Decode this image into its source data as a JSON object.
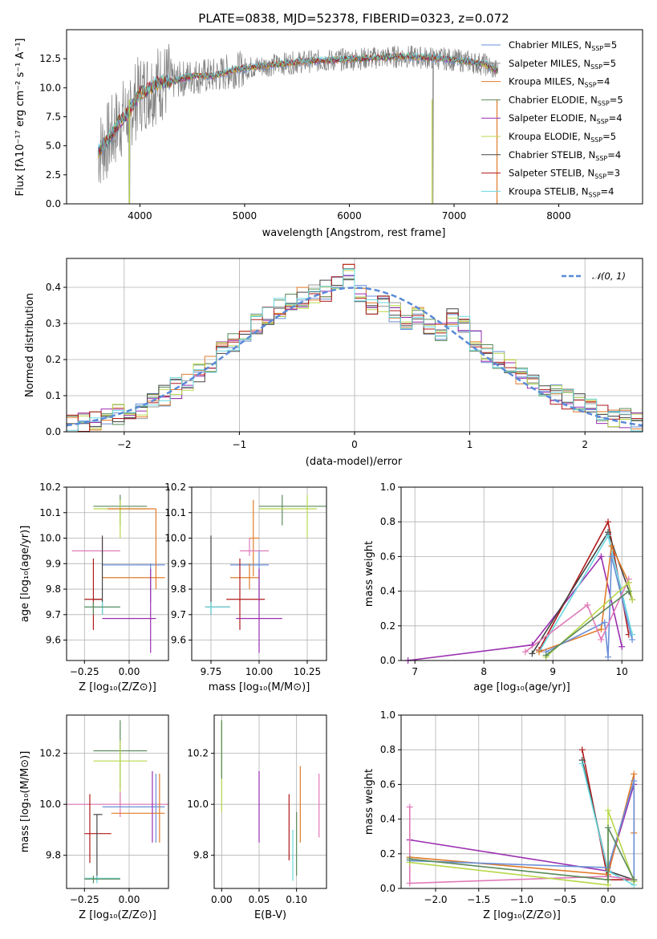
{
  "colors": {
    "Chabrier MILES": "#6a8fd8",
    "Salpeter MILES": "#9a9a9a",
    "Kroupa MILES": "#e07b2a",
    "Chabrier ELODIE": "#5a8a5a",
    "Salpeter ELODIE": "#9a2fb0",
    "Kroupa ELODIE": "#b8d84a",
    "Chabrier STELIB": "#444444",
    "Salpeter STELIB": "#b01a1a",
    "Kroupa STELIB": "#6ad8e0",
    "pink": "#e07ab8",
    "normal": "#5a8ad8"
  },
  "chart_data": [
    {
      "id": "spectrum",
      "type": "line",
      "title": "PLATE=0838, MJD=52378, FIBERID=0323, z=0.072",
      "xlabel": "wavelength [Angstrom, rest frame]",
      "ylabel": "Flux [fλ10⁻¹⁷ erg cm⁻² s⁻¹ A⁻¹]",
      "xlim": [
        3300,
        8800
      ],
      "ylim": [
        0,
        15
      ],
      "xticks": [
        "4000",
        "5000",
        "6000",
        "7000",
        "8000"
      ],
      "yticks": [
        "0.0",
        "2.5",
        "5.0",
        "7.5",
        "10.0",
        "12.5"
      ],
      "xtick_values": [
        4000,
        5000,
        6000,
        7000,
        8000
      ],
      "ytick_values": [
        0,
        2.5,
        5,
        7.5,
        10,
        12.5
      ],
      "legend_position": "right",
      "legend": [
        {
          "name": "Chabrier MILES",
          "nssp": "5"
        },
        {
          "name": "Salpeter MILES",
          "nssp": "5"
        },
        {
          "name": "Kroupa MILES",
          "nssp": "4"
        },
        {
          "name": "Chabrier ELODIE",
          "nssp": "5"
        },
        {
          "name": "Salpeter ELODIE",
          "nssp": "4"
        },
        {
          "name": "Kroupa ELODIE",
          "nssp": "5"
        },
        {
          "name": "Chabrier STELIB",
          "nssp": "4"
        },
        {
          "name": "Salpeter STELIB",
          "nssp": "3"
        },
        {
          "name": "Kroupa STELIB",
          "nssp": "4"
        }
      ],
      "data_x": [
        3600,
        3700,
        3800,
        3900,
        4000,
        4100,
        4200,
        4300,
        4500,
        4700,
        4900,
        5100,
        5300,
        5500,
        5700,
        5900,
        6100,
        6300,
        6500,
        6700,
        6900,
        7100,
        7300,
        7400
      ],
      "data_y": [
        4.5,
        5.5,
        7.0,
        8.0,
        9.5,
        10.0,
        10.5,
        10.5,
        11.0,
        11.0,
        11.5,
        11.8,
        12.0,
        12.2,
        12.3,
        12.4,
        12.5,
        12.6,
        12.7,
        12.6,
        12.5,
        12.3,
        12.0,
        11.5
      ]
    },
    {
      "id": "residuals",
      "type": "line",
      "xlabel": "(data-model)/error",
      "ylabel": "Normed distribution",
      "xlim": [
        -2.5,
        2.5
      ],
      "ylim": [
        0,
        0.48
      ],
      "xticks": [
        "−2",
        "−1",
        "0",
        "1",
        "2"
      ],
      "yticks": [
        "0.0",
        "0.1",
        "0.2",
        "0.3",
        "0.4"
      ],
      "xtick_values": [
        -2,
        -1,
        0,
        1,
        2
      ],
      "ytick_values": [
        0,
        0.1,
        0.2,
        0.3,
        0.4
      ],
      "legend_position": "top-right",
      "legend_label": "𝒩(0, 1)",
      "hist_values": [
        0.02,
        0.025,
        0.03,
        0.04,
        0.05,
        0.06,
        0.065,
        0.08,
        0.1,
        0.12,
        0.14,
        0.16,
        0.19,
        0.22,
        0.25,
        0.27,
        0.3,
        0.32,
        0.34,
        0.36,
        0.37,
        0.38,
        0.39,
        0.41,
        0.44,
        0.38,
        0.35,
        0.36,
        0.33,
        0.3,
        0.32,
        0.3,
        0.28,
        0.32,
        0.3,
        0.25,
        0.22,
        0.2,
        0.18,
        0.16,
        0.14,
        0.12,
        0.1,
        0.09,
        0.08,
        0.07,
        0.05,
        0.04,
        0.035,
        0.03
      ]
    },
    {
      "id": "z-age",
      "type": "scatter",
      "xlabel": "Z [log₁₀(Z/Z⊙)]",
      "ylabel": "age  [log₁₀(age/yr)]",
      "xlim": [
        -0.35,
        0.22
      ],
      "ylim": [
        9.52,
        10.2
      ],
      "xticks": [
        "−0.25",
        "0.00"
      ],
      "yticks": [
        "9.6",
        "9.7",
        "9.8",
        "9.9",
        "10.0",
        "10.1",
        "10.2"
      ],
      "xtick_values": [
        -0.25,
        0
      ],
      "ytick_values": [
        9.6,
        9.7,
        9.8,
        9.9,
        10.0,
        10.1,
        10.2
      ]
    },
    {
      "id": "mass-age",
      "type": "scatter",
      "xlabel": "mass [log₁₀(M/M⊙)]",
      "xlim": [
        9.65,
        10.35
      ],
      "ylim": [
        9.52,
        10.2
      ],
      "xticks": [
        "9.75",
        "10.00",
        "10.25"
      ],
      "yticks": [
        "9.6",
        "9.7",
        "9.8",
        "9.9",
        "10.0",
        "10.1",
        "10.2"
      ],
      "xtick_values": [
        9.75,
        10.0,
        10.25
      ],
      "ytick_values": [
        9.6,
        9.7,
        9.8,
        9.9,
        10.0,
        10.1,
        10.2
      ]
    },
    {
      "id": "age-weight",
      "type": "line",
      "xlabel": "age  [log₁₀(age/yr)]",
      "ylabel": "mass weight",
      "xlim": [
        6.8,
        10.3
      ],
      "ylim": [
        0,
        1
      ],
      "xticks": [
        "7",
        "8",
        "9",
        "10"
      ],
      "yticks": [
        "0.0",
        "0.2",
        "0.4",
        "0.6",
        "0.8",
        "1.0"
      ],
      "xtick_values": [
        7,
        8,
        9,
        10
      ],
      "ytick_values": [
        0,
        0.2,
        0.4,
        0.6,
        0.8,
        1.0
      ]
    },
    {
      "id": "z-mass",
      "type": "scatter",
      "xlabel": "Z [log₁₀(Z/Z⊙)]",
      "ylabel": "mass [log₁₀(M/M⊙)]",
      "xlim": [
        -0.35,
        0.22
      ],
      "ylim": [
        9.67,
        10.35
      ],
      "xticks": [
        "−0.25",
        "0.00"
      ],
      "yticks": [
        "9.8",
        "10.0",
        "10.2"
      ],
      "xtick_values": [
        -0.25,
        0
      ],
      "ytick_values": [
        9.8,
        10.0,
        10.2
      ]
    },
    {
      "id": "ebv-mass",
      "type": "scatter",
      "xlabel": "E(B-V)",
      "xlim": [
        -0.01,
        0.14
      ],
      "ylim": [
        9.67,
        10.35
      ],
      "xticks": [
        "0.00",
        "0.05",
        "0.10"
      ],
      "yticks": [
        "9.8",
        "10.0",
        "10.2"
      ],
      "xtick_values": [
        0,
        0.05,
        0.1
      ],
      "ytick_values": [
        9.8,
        10.0,
        10.2
      ]
    },
    {
      "id": "z-weight",
      "type": "line",
      "xlabel": "Z [log₁₀(Z/Z⊙)]",
      "ylabel": "mass weight",
      "xlim": [
        -2.4,
        0.4
      ],
      "ylim": [
        0,
        1
      ],
      "xticks": [
        "−2.0",
        "−1.5",
        "−1.0",
        "−0.5",
        "0.0"
      ],
      "yticks": [
        "0.0",
        "0.2",
        "0.4",
        "0.6",
        "0.8",
        "1.0"
      ],
      "xtick_values": [
        -2,
        -1.5,
        -1,
        -0.5,
        0
      ],
      "ytick_values": [
        0,
        0.2,
        0.4,
        0.6,
        0.8,
        1.0
      ]
    }
  ]
}
